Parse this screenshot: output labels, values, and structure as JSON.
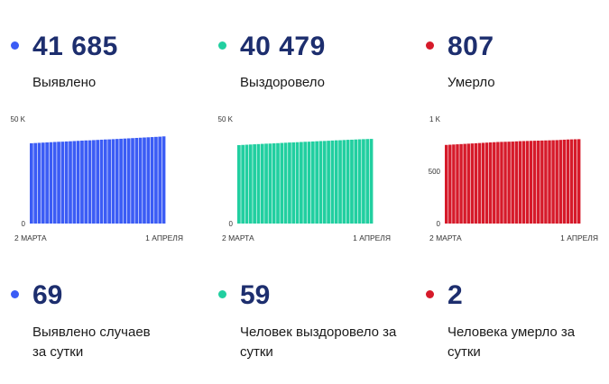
{
  "panels": [
    {
      "total": "41 685",
      "caption": "Выявлено",
      "color": "#3b5cf5",
      "daily": "69",
      "daily_caption": "Выявлено случаев за сутки"
    },
    {
      "total": "40 479",
      "caption": "Выздоровело",
      "color": "#21cfa0",
      "daily": "59",
      "daily_caption": "Человек выздоровело за сутки"
    },
    {
      "total": "807",
      "caption": "Умерло",
      "color": "#d61a2a",
      "daily": "2",
      "daily_caption": "Человека умерло за сутки"
    }
  ],
  "chart_data": [
    {
      "type": "bar",
      "x_labels": [
        "2 МАРТА",
        "1 АПРЕЛЯ"
      ],
      "y_ticks": [
        "50 K",
        "0"
      ],
      "ylim": [
        0,
        50000
      ],
      "values": [
        38400,
        38500,
        38600,
        38700,
        38800,
        38900,
        39000,
        39100,
        39150,
        39250,
        39350,
        39450,
        39550,
        39650,
        39750,
        39800,
        39900,
        40000,
        40100,
        40200,
        40250,
        40350,
        40450,
        40550,
        40650,
        40750,
        40850,
        40950,
        41050,
        41150,
        41250,
        41350,
        41450,
        41550,
        41685
      ],
      "color": "#3b5cf5"
    },
    {
      "type": "bar",
      "x_labels": [
        "2 МАРТА",
        "1 АПРЕЛЯ"
      ],
      "y_ticks": [
        "50 K",
        "0"
      ],
      "ylim": [
        0,
        50000
      ],
      "values": [
        37500,
        37600,
        37700,
        37800,
        37900,
        38000,
        38100,
        38200,
        38250,
        38350,
        38450,
        38550,
        38650,
        38750,
        38800,
        38900,
        39000,
        39100,
        39150,
        39250,
        39350,
        39450,
        39500,
        39600,
        39700,
        39800,
        39850,
        39950,
        40050,
        40100,
        40200,
        40280,
        40350,
        40420,
        40479
      ],
      "color": "#21cfa0"
    },
    {
      "type": "bar",
      "x_labels": [
        "2 МАРТА",
        "1 АПРЕЛЯ"
      ],
      "y_ticks": [
        "1 K",
        "500",
        "0"
      ],
      "ylim": [
        0,
        1000
      ],
      "values": [
        752,
        754,
        756,
        758,
        760,
        762,
        764,
        766,
        768,
        770,
        772,
        774,
        776,
        778,
        780,
        781,
        782,
        783,
        784,
        786,
        788,
        789,
        790,
        791,
        792,
        793,
        794,
        795,
        796,
        797,
        798,
        800,
        802,
        804,
        805,
        806,
        807
      ],
      "color": "#d61a2a"
    }
  ]
}
